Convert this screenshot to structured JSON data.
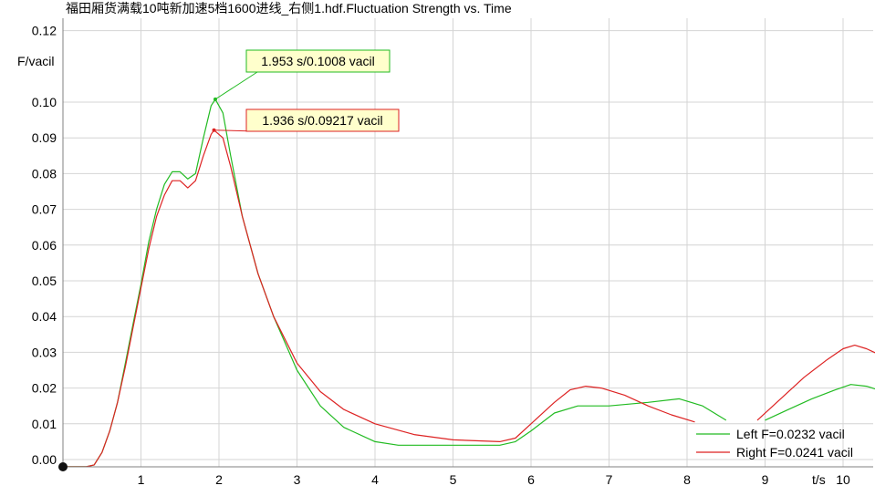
{
  "chart_data": {
    "type": "line",
    "title": "福田厢货满载10吨新加速5档1600进线_右侧1.hdf.Fluctuation Strength vs. Time",
    "xlabel": "t/s",
    "ylabel": "F/vacil",
    "xlim": [
      0,
      10.4
    ],
    "ylim": [
      -0.002,
      0.125
    ],
    "x_ticks": [
      "1",
      "2",
      "3",
      "4",
      "5",
      "6",
      "7",
      "8",
      "9",
      "10"
    ],
    "y_ticks": [
      "0.12",
      "0.10",
      "0.09",
      "0.08",
      "0.07",
      "0.06",
      "0.05",
      "0.04",
      "0.03",
      "0.02",
      "0.01",
      "0.00"
    ],
    "grid": true,
    "legend_position": "bottom-right",
    "series": [
      {
        "name": "Left",
        "legend_label": "Left F=0.0232 vacil",
        "color": "#22bb22",
        "points": [
          [
            0.0,
            -0.002
          ],
          [
            0.3,
            -0.002
          ],
          [
            0.4,
            -0.0015
          ],
          [
            0.5,
            0.002
          ],
          [
            0.6,
            0.008
          ],
          [
            0.7,
            0.016
          ],
          [
            0.8,
            0.027
          ],
          [
            0.9,
            0.038
          ],
          [
            1.0,
            0.049
          ],
          [
            1.1,
            0.061
          ],
          [
            1.2,
            0.07
          ],
          [
            1.3,
            0.077
          ],
          [
            1.4,
            0.0805
          ],
          [
            1.5,
            0.0805
          ],
          [
            1.6,
            0.0785
          ],
          [
            1.7,
            0.08
          ],
          [
            1.8,
            0.09
          ],
          [
            1.9,
            0.099
          ],
          [
            1.953,
            0.1008
          ],
          [
            2.05,
            0.097
          ],
          [
            2.15,
            0.085
          ],
          [
            2.3,
            0.068
          ],
          [
            2.5,
            0.052
          ],
          [
            2.7,
            0.04
          ],
          [
            3.0,
            0.025
          ],
          [
            3.3,
            0.015
          ],
          [
            3.6,
            0.009
          ],
          [
            4.0,
            0.005
          ],
          [
            4.3,
            0.004
          ],
          [
            5.0,
            0.004
          ],
          [
            5.6,
            0.004
          ],
          [
            5.8,
            0.005
          ],
          [
            6.0,
            0.008
          ],
          [
            6.3,
            0.013
          ],
          [
            6.6,
            0.015
          ],
          [
            7.0,
            0.015
          ],
          [
            7.5,
            0.016
          ],
          [
            7.9,
            0.017
          ],
          [
            8.2,
            0.015
          ],
          [
            8.5,
            0.011
          ]
        ]
      },
      {
        "name": "Left",
        "color": "#22bb22",
        "points": [
          [
            9.0,
            0.011
          ],
          [
            9.3,
            0.014
          ],
          [
            9.6,
            0.017
          ],
          [
            9.9,
            0.0195
          ],
          [
            10.1,
            0.021
          ],
          [
            10.3,
            0.0205
          ],
          [
            10.45,
            0.0195
          ]
        ]
      },
      {
        "name": "Right",
        "legend_label": "Right F=0.0241 vacil",
        "color": "#dd2222",
        "points": [
          [
            0.0,
            -0.002
          ],
          [
            0.3,
            -0.002
          ],
          [
            0.4,
            -0.0015
          ],
          [
            0.5,
            0.002
          ],
          [
            0.6,
            0.008
          ],
          [
            0.7,
            0.016
          ],
          [
            0.8,
            0.026
          ],
          [
            0.9,
            0.037
          ],
          [
            1.0,
            0.048
          ],
          [
            1.1,
            0.059
          ],
          [
            1.2,
            0.068
          ],
          [
            1.3,
            0.074
          ],
          [
            1.4,
            0.078
          ],
          [
            1.5,
            0.078
          ],
          [
            1.6,
            0.076
          ],
          [
            1.7,
            0.078
          ],
          [
            1.8,
            0.085
          ],
          [
            1.9,
            0.091
          ],
          [
            1.936,
            0.09217
          ],
          [
            2.05,
            0.09
          ],
          [
            2.15,
            0.082
          ],
          [
            2.3,
            0.068
          ],
          [
            2.5,
            0.052
          ],
          [
            2.7,
            0.04
          ],
          [
            3.0,
            0.027
          ],
          [
            3.3,
            0.019
          ],
          [
            3.6,
            0.014
          ],
          [
            4.0,
            0.01
          ],
          [
            4.5,
            0.007
          ],
          [
            5.0,
            0.0055
          ],
          [
            5.6,
            0.005
          ],
          [
            5.8,
            0.006
          ],
          [
            6.0,
            0.01
          ],
          [
            6.3,
            0.016
          ],
          [
            6.5,
            0.0195
          ],
          [
            6.7,
            0.0205
          ],
          [
            6.9,
            0.02
          ],
          [
            7.2,
            0.018
          ],
          [
            7.5,
            0.015
          ],
          [
            7.8,
            0.0125
          ],
          [
            8.1,
            0.0105
          ]
        ]
      },
      {
        "name": "Right",
        "color": "#dd2222",
        "points": [
          [
            8.9,
            0.011
          ],
          [
            9.2,
            0.017
          ],
          [
            9.5,
            0.023
          ],
          [
            9.8,
            0.028
          ],
          [
            10.0,
            0.031
          ],
          [
            10.15,
            0.032
          ],
          [
            10.3,
            0.031
          ],
          [
            10.45,
            0.0295
          ]
        ]
      }
    ],
    "annotations": [
      {
        "text": "1.953 s/0.1008 vacil",
        "x": 1.953,
        "y": 0.1008,
        "color": "#22bb22"
      },
      {
        "text": "1.936 s/0.09217 vacil",
        "x": 1.936,
        "y": 0.09217,
        "color": "#dd2222"
      }
    ]
  }
}
